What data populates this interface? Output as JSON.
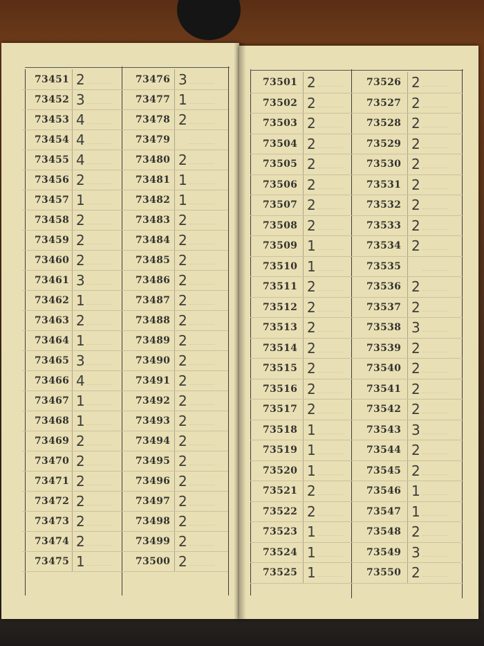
{
  "ledger": {
    "columns": [
      {
        "rows": [
          {
            "number": "73451",
            "mark": "2"
          },
          {
            "number": "73452",
            "mark": "3"
          },
          {
            "number": "73453",
            "mark": "4"
          },
          {
            "number": "73454",
            "mark": "4"
          },
          {
            "number": "73455",
            "mark": "4"
          },
          {
            "number": "73456",
            "mark": "2"
          },
          {
            "number": "73457",
            "mark": "1"
          },
          {
            "number": "73458",
            "mark": "2"
          },
          {
            "number": "73459",
            "mark": "2"
          },
          {
            "number": "73460",
            "mark": "2"
          },
          {
            "number": "73461",
            "mark": "3"
          },
          {
            "number": "73462",
            "mark": "1"
          },
          {
            "number": "73463",
            "mark": "2"
          },
          {
            "number": "73464",
            "mark": "1"
          },
          {
            "number": "73465",
            "mark": "3"
          },
          {
            "number": "73466",
            "mark": "4"
          },
          {
            "number": "73467",
            "mark": "1"
          },
          {
            "number": "73468",
            "mark": "1"
          },
          {
            "number": "73469",
            "mark": "2"
          },
          {
            "number": "73470",
            "mark": "2"
          },
          {
            "number": "73471",
            "mark": "2"
          },
          {
            "number": "73472",
            "mark": "2"
          },
          {
            "number": "73473",
            "mark": "2"
          },
          {
            "number": "73474",
            "mark": "2"
          },
          {
            "number": "73475",
            "mark": "1"
          }
        ]
      },
      {
        "rows": [
          {
            "number": "73476",
            "mark": "3"
          },
          {
            "number": "73477",
            "mark": "1"
          },
          {
            "number": "73478",
            "mark": "2"
          },
          {
            "number": "73479"
          },
          {
            "number": "73480",
            "mark": "2"
          },
          {
            "number": "73481",
            "mark": "1"
          },
          {
            "number": "73482",
            "mark": "1"
          },
          {
            "number": "73483",
            "mark": "2"
          },
          {
            "number": "73484",
            "mark": "2"
          },
          {
            "number": "73485",
            "mark": "2"
          },
          {
            "number": "73486",
            "mark": "2"
          },
          {
            "number": "73487",
            "mark": "2"
          },
          {
            "number": "73488",
            "mark": "2"
          },
          {
            "number": "73489",
            "mark": "2"
          },
          {
            "number": "73490",
            "mark": "2"
          },
          {
            "number": "73491",
            "mark": "2"
          },
          {
            "number": "73492",
            "mark": "2"
          },
          {
            "number": "73493",
            "mark": "2"
          },
          {
            "number": "73494",
            "mark": "2"
          },
          {
            "number": "73495",
            "mark": "2"
          },
          {
            "number": "73496",
            "mark": "2"
          },
          {
            "number": "73497",
            "mark": "2"
          },
          {
            "number": "73498",
            "mark": "2"
          },
          {
            "number": "73499",
            "mark": "2"
          },
          {
            "number": "73500",
            "mark": "2"
          }
        ]
      },
      {
        "rows": [
          {
            "number": "73501",
            "mark": "2"
          },
          {
            "number": "73502",
            "mark": "2"
          },
          {
            "number": "73503",
            "mark": "2"
          },
          {
            "number": "73504",
            "mark": "2"
          },
          {
            "number": "73505",
            "mark": "2"
          },
          {
            "number": "73506",
            "mark": "2"
          },
          {
            "number": "73507",
            "mark": "2"
          },
          {
            "number": "73508",
            "mark": "2"
          },
          {
            "number": "73509",
            "mark": "1"
          },
          {
            "number": "73510",
            "mark": "1"
          },
          {
            "number": "73511",
            "mark": "2"
          },
          {
            "number": "73512",
            "mark": "2"
          },
          {
            "number": "73513",
            "mark": "2"
          },
          {
            "number": "73514",
            "mark": "2"
          },
          {
            "number": "73515",
            "mark": "2"
          },
          {
            "number": "73516",
            "mark": "2"
          },
          {
            "number": "73517",
            "mark": "2"
          },
          {
            "number": "73518",
            "mark": "1"
          },
          {
            "number": "73519",
            "mark": "1"
          },
          {
            "number": "73520",
            "mark": "1"
          },
          {
            "number": "73521",
            "mark": "2"
          },
          {
            "number": "73522",
            "mark": "2"
          },
          {
            "number": "73523",
            "mark": "1"
          },
          {
            "number": "73524",
            "mark": "1"
          },
          {
            "number": "73525",
            "mark": "1"
          }
        ]
      },
      {
        "rows": [
          {
            "number": "73526",
            "mark": "2"
          },
          {
            "number": "73527",
            "mark": "2"
          },
          {
            "number": "73528",
            "mark": "2"
          },
          {
            "number": "73529",
            "mark": "2"
          },
          {
            "number": "73530",
            "mark": "2"
          },
          {
            "number": "73531",
            "mark": "2"
          },
          {
            "number": "73532",
            "mark": "2"
          },
          {
            "number": "73533",
            "mark": "2"
          },
          {
            "number": "73534",
            "mark": "2"
          },
          {
            "number": "73535"
          },
          {
            "number": "73536",
            "mark": "2"
          },
          {
            "number": "73537",
            "mark": "2"
          },
          {
            "number": "73538",
            "mark": "3"
          },
          {
            "number": "73539",
            "mark": "2"
          },
          {
            "number": "73540",
            "mark": "2"
          },
          {
            "number": "73541",
            "mark": "2"
          },
          {
            "number": "73542",
            "mark": "2"
          },
          {
            "number": "73543",
            "mark": "3"
          },
          {
            "number": "73544",
            "mark": "2"
          },
          {
            "number": "73545",
            "mark": "2"
          },
          {
            "number": "73546",
            "mark": "1"
          },
          {
            "number": "73547",
            "mark": "1"
          },
          {
            "number": "73548",
            "mark": "2"
          },
          {
            "number": "73549",
            "mark": "3"
          },
          {
            "number": "73550",
            "mark": "2"
          }
        ]
      }
    ]
  }
}
